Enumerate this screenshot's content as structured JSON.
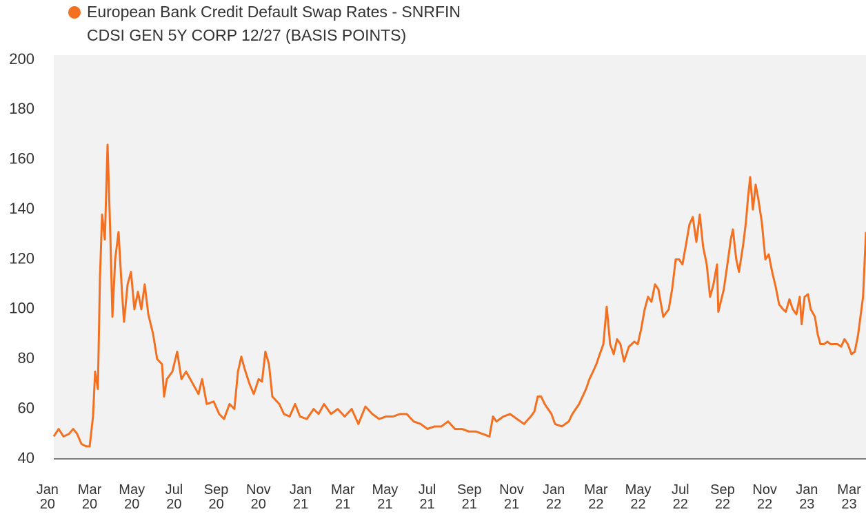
{
  "chart_data": {
    "type": "line",
    "title": "European Bank Credit Default Swap Rates - SNRFIN",
    "subtitle": "CDSI GEN 5Y CORP 12/27 (BASIS POINTS)",
    "xlim": [
      0.3,
      38.8
    ],
    "ylim": [
      40,
      200
    ],
    "yticks": [
      40,
      60,
      80,
      100,
      120,
      140,
      160,
      180,
      200
    ],
    "xticks": [
      {
        "value": 0,
        "label": "Jan 20"
      },
      {
        "value": 2,
        "label": "Mar 20"
      },
      {
        "value": 4,
        "label": "May 20"
      },
      {
        "value": 6,
        "label": "Jul 20"
      },
      {
        "value": 8,
        "label": "Sep 20"
      },
      {
        "value": 10,
        "label": "Nov 20"
      },
      {
        "value": 12,
        "label": "Jan 21"
      },
      {
        "value": 14,
        "label": "Mar 21"
      },
      {
        "value": 16,
        "label": "May 21"
      },
      {
        "value": 18,
        "label": "Jul 21"
      },
      {
        "value": 20,
        "label": "Sep 21"
      },
      {
        "value": 22,
        "label": "Nov 21"
      },
      {
        "value": 24,
        "label": "Jan 22"
      },
      {
        "value": 26,
        "label": "Mar 22"
      },
      {
        "value": 28,
        "label": "May 22"
      },
      {
        "value": 30,
        "label": "Jul 22"
      },
      {
        "value": 32,
        "label": "Sep 22"
      },
      {
        "value": 34,
        "label": "Nov 22"
      },
      {
        "value": 36,
        "label": "Jan 23"
      },
      {
        "value": 38,
        "label": "Mar 23"
      }
    ],
    "grid": false,
    "series": [
      {
        "name": "European Bank Credit Default Swap Rates - SNRFIN",
        "color": "#f37021",
        "x": [
          0.3,
          0.53,
          0.76,
          1.02,
          1.22,
          1.41,
          1.61,
          1.84,
          2.0,
          2.16,
          2.26,
          2.39,
          2.49,
          2.59,
          2.72,
          2.85,
          2.98,
          3.08,
          3.21,
          3.37,
          3.54,
          3.63,
          3.8,
          3.96,
          4.12,
          4.29,
          4.45,
          4.61,
          4.78,
          5.01,
          5.2,
          5.43,
          5.53,
          5.66,
          5.92,
          6.15,
          6.35,
          6.57,
          6.9,
          7.16,
          7.33,
          7.55,
          7.88,
          8.14,
          8.37,
          8.63,
          8.86,
          9.03,
          9.19,
          9.35,
          9.58,
          9.78,
          10.01,
          10.17,
          10.33,
          10.5,
          10.66,
          10.99,
          11.21,
          11.48,
          11.74,
          11.97,
          12.29,
          12.62,
          12.85,
          13.11,
          13.44,
          13.76,
          14.09,
          14.42,
          14.74,
          15.07,
          15.4,
          15.72,
          16.05,
          16.38,
          16.71,
          17.03,
          17.36,
          17.69,
          18.01,
          18.34,
          18.67,
          18.99,
          19.32,
          19.65,
          19.97,
          20.3,
          20.63,
          20.95,
          21.12,
          21.28,
          21.61,
          21.93,
          22.26,
          22.59,
          22.91,
          23.08,
          23.24,
          23.4,
          23.57,
          23.73,
          23.89,
          24.06,
          24.38,
          24.71,
          24.88,
          25.2,
          25.53,
          25.69,
          25.86,
          26.02,
          26.18,
          26.35,
          26.51,
          26.67,
          26.84,
          27.0,
          27.16,
          27.33,
          27.56,
          27.82,
          27.98,
          28.14,
          28.31,
          28.47,
          28.63,
          28.8,
          28.96,
          29.19,
          29.45,
          29.61,
          29.78,
          29.94,
          30.1,
          30.27,
          30.43,
          30.59,
          30.76,
          30.92,
          31.08,
          31.25,
          31.41,
          31.57,
          31.74,
          31.8,
          32.06,
          32.23,
          32.39,
          32.49,
          32.65,
          32.78,
          32.98,
          33.11,
          33.21,
          33.31,
          33.44,
          33.57,
          33.7,
          33.86,
          34.03,
          34.19,
          34.35,
          34.52,
          34.68,
          34.87,
          35.0,
          35.17,
          35.33,
          35.5,
          35.66,
          35.75,
          35.89,
          36.05,
          36.18,
          36.38,
          36.51,
          36.64,
          36.8,
          36.97,
          37.13,
          37.29,
          37.46,
          37.62,
          37.78,
          37.94,
          38.11,
          38.27,
          38.43,
          38.66,
          38.8
        ],
        "values": [
          49,
          52,
          49,
          50,
          52,
          50,
          46,
          45,
          45,
          57,
          75,
          68,
          113,
          138,
          128,
          166,
          130,
          97,
          120,
          131,
          106,
          95,
          110,
          115,
          100,
          107,
          100,
          110,
          98,
          90,
          80,
          78,
          65,
          72,
          75,
          83,
          72,
          75,
          70,
          66,
          72,
          62,
          63,
          58,
          56,
          62,
          60,
          75,
          81,
          76,
          70,
          66,
          72,
          71,
          83,
          78,
          65,
          62,
          58,
          57,
          62,
          57,
          56,
          60,
          58,
          62,
          58,
          60,
          57,
          60,
          54,
          61,
          58,
          56,
          57,
          57,
          58,
          58,
          55,
          54,
          52,
          53,
          53,
          55,
          52,
          52,
          51,
          51,
          50,
          49,
          57,
          55,
          57,
          58,
          56,
          54,
          57,
          59,
          65,
          65,
          62,
          60,
          58,
          54,
          53,
          55,
          58,
          62,
          68,
          72,
          75,
          78,
          82,
          86,
          101,
          86,
          82,
          88,
          86,
          79,
          85,
          87,
          86,
          92,
          100,
          105,
          103,
          110,
          108,
          97,
          100,
          108,
          120,
          120,
          118,
          126,
          134,
          137,
          127,
          138,
          125,
          118,
          105,
          110,
          118,
          99,
          108,
          118,
          128,
          132,
          120,
          115,
          126,
          135,
          145,
          153,
          140,
          150,
          144,
          135,
          120,
          122,
          115,
          109,
          102,
          100,
          99,
          104,
          100,
          98,
          105,
          94,
          105,
          106,
          100,
          97,
          90,
          86,
          86,
          87,
          86,
          86,
          86,
          85,
          88,
          86,
          82,
          83,
          90,
          105,
          131
        ]
      }
    ]
  }
}
